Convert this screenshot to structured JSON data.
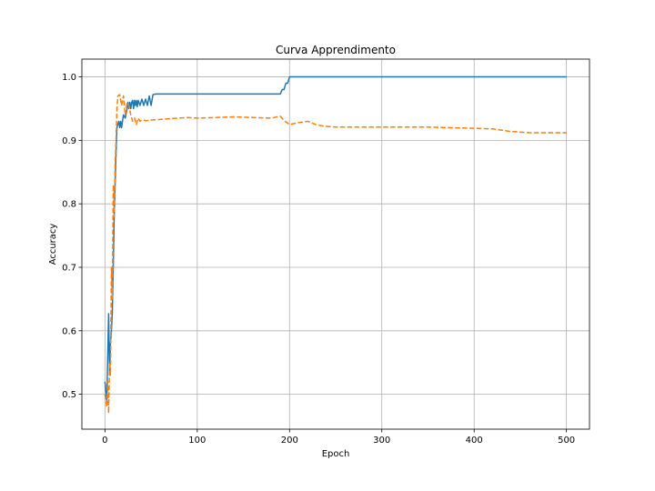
{
  "chart_data": {
    "type": "line",
    "title": "Curva Apprendimento",
    "xlabel": "Epoch",
    "ylabel": "Accuracy",
    "xlim": [
      -25,
      525
    ],
    "ylim": [
      0.445,
      1.028
    ],
    "xticks": [
      0,
      100,
      200,
      300,
      400,
      500
    ],
    "yticks": [
      0.5,
      0.6,
      0.7,
      0.8,
      0.9,
      1.0
    ],
    "xtick_labels": [
      "0",
      "100",
      "200",
      "300",
      "400",
      "500"
    ],
    "ytick_labels": [
      "0.5",
      "0.6",
      "0.7",
      "0.8",
      "0.9",
      "1.0"
    ],
    "grid": true,
    "legend": "none",
    "series": [
      {
        "color": "#1f77b4",
        "style": "solid",
        "x": [
          0,
          2,
          4,
          5,
          6,
          7,
          8,
          9,
          10,
          11,
          12,
          13,
          14,
          15,
          16,
          17,
          18,
          19,
          20,
          22,
          24,
          25,
          26,
          27,
          28,
          29,
          30,
          31,
          32,
          33,
          34,
          35,
          36,
          38,
          40,
          42,
          44,
          46,
          48,
          50,
          52,
          55,
          60,
          100,
          150,
          190,
          192,
          194,
          196,
          198,
          200,
          202,
          300,
          400,
          500
        ],
        "y": [
          0.52,
          0.49,
          0.627,
          0.53,
          0.58,
          0.6,
          0.63,
          0.7,
          0.78,
          0.83,
          0.88,
          0.92,
          0.925,
          0.93,
          0.92,
          0.93,
          0.92,
          0.93,
          0.94,
          0.935,
          0.95,
          0.96,
          0.95,
          0.96,
          0.95,
          0.96,
          0.963,
          0.95,
          0.963,
          0.955,
          0.963,
          0.953,
          0.963,
          0.955,
          0.965,
          0.955,
          0.965,
          0.955,
          0.97,
          0.955,
          0.972,
          0.973,
          0.973,
          0.973,
          0.973,
          0.973,
          0.98,
          0.98,
          0.99,
          0.99,
          1.0,
          1.0,
          1.0,
          1.0,
          1.0
        ]
      },
      {
        "color": "#ff7f0e",
        "style": "dashed",
        "x": [
          0,
          2,
          3,
          4,
          5,
          6,
          7,
          8,
          9,
          10,
          11,
          12,
          13,
          14,
          16,
          18,
          20,
          22,
          24,
          26,
          28,
          30,
          32,
          34,
          36,
          38,
          40,
          45,
          50,
          60,
          70,
          80,
          90,
          100,
          120,
          140,
          160,
          180,
          190,
          195,
          200,
          210,
          220,
          230,
          240,
          250,
          300,
          350,
          370,
          400,
          420,
          440,
          460,
          480,
          500
        ],
        "y": [
          0.5,
          0.48,
          0.52,
          0.47,
          0.55,
          0.53,
          0.7,
          0.65,
          0.83,
          0.78,
          0.86,
          0.9,
          0.95,
          0.97,
          0.972,
          0.955,
          0.97,
          0.94,
          0.96,
          0.955,
          0.94,
          0.93,
          0.935,
          0.925,
          0.935,
          0.93,
          0.932,
          0.931,
          0.932,
          0.933,
          0.934,
          0.935,
          0.936,
          0.935,
          0.936,
          0.937,
          0.936,
          0.935,
          0.938,
          0.93,
          0.925,
          0.928,
          0.93,
          0.924,
          0.922,
          0.921,
          0.921,
          0.921,
          0.92,
          0.919,
          0.918,
          0.914,
          0.912,
          0.912,
          0.912
        ]
      }
    ]
  }
}
